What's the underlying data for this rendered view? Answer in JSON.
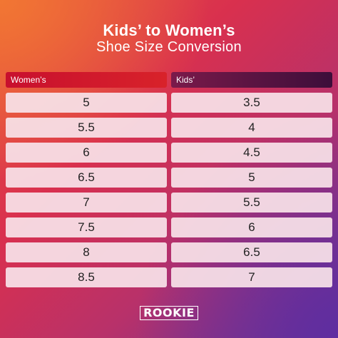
{
  "header": {
    "title": "Kids’ to Women’s",
    "subtitle": "Shoe Size Conversion"
  },
  "table": {
    "left_header": "Women’s",
    "right_header": "Kids’",
    "women": [
      "5",
      "5.5",
      "6",
      "6.5",
      "7",
      "7.5",
      "8",
      "8.5"
    ],
    "kids": [
      "3.5",
      "4",
      "4.5",
      "5",
      "5.5",
      "6",
      "6.5",
      "7"
    ]
  },
  "footer": {
    "logo_text": "ROOKIE"
  }
}
